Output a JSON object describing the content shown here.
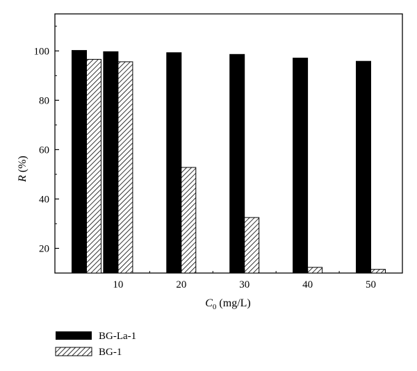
{
  "chart_data": {
    "type": "bar",
    "x_ticks": [
      "10",
      "20",
      "30",
      "40",
      "50"
    ],
    "x_positions": [
      5,
      10,
      20,
      30,
      40,
      50
    ],
    "xlim": [
      0,
      55
    ],
    "ylim": [
      10,
      115
    ],
    "y_ticks": [
      20,
      40,
      60,
      80,
      100
    ],
    "xlabel_main": "C",
    "xlabel_sub": "0",
    "xlabel_unit": " (mg/L)",
    "ylabel_main": "R",
    "ylabel_unit": " (%)",
    "series": [
      {
        "name": "BG-La-1",
        "fill": "solid",
        "color": "#000000",
        "values": [
          100.2,
          99.7,
          99.3,
          98.6,
          97.1,
          95.8
        ]
      },
      {
        "name": "BG-1",
        "fill": "hatched",
        "color": "#000000",
        "values": [
          96.6,
          95.6,
          52.8,
          32.5,
          12.3,
          11.5
        ]
      }
    ],
    "legend_position": "bottom-left",
    "grid": false
  }
}
